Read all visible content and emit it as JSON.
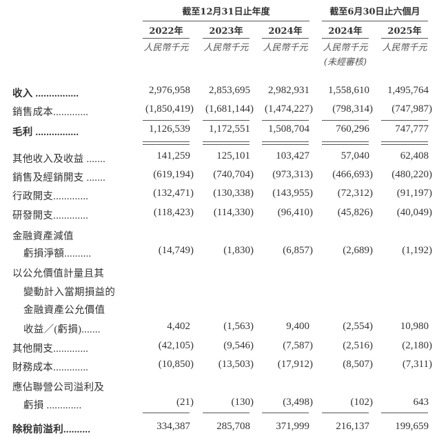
{
  "header": {
    "group_annual": "截至12月31日止年度",
    "group_interim": "截至6月30日止六個月",
    "years": [
      "2022年",
      "2023年",
      "2024年",
      "2024年",
      "2025年"
    ],
    "units": [
      "人民幣千元",
      "人民幣千元",
      "人民幣千元",
      "人民幣千元",
      "人民幣千元"
    ],
    "unaudited_note": "(未經審核)"
  },
  "rows": [
    {
      "label": "收入 ................",
      "values": [
        "2,976,958",
        "2,853,695",
        "2,982,931",
        "1,558,610",
        "1,495,764"
      ],
      "bold": true
    },
    {
      "label": "銷售成本.............",
      "values": [
        "(1,850,419)",
        "(1,681,144)",
        "(1,474,227)",
        "(798,314)",
        "(747,987)"
      ]
    },
    {
      "label": "毛利 ................",
      "values": [
        "1,126,539",
        "1,172,551",
        "1,508,704",
        "760,296",
        "747,777"
      ],
      "bold": true
    },
    {
      "label": "其他收入及收益 .......",
      "values": [
        "141,259",
        "125,101",
        "103,427",
        "57,040",
        "62,408"
      ]
    },
    {
      "label": "銷售及經銷開支 .......",
      "values": [
        "(619,194)",
        "(740,704)",
        "(973,313)",
        "(466,693)",
        "(480,220)"
      ]
    },
    {
      "label": "行政開支.............",
      "values": [
        "(132,471)",
        "(130,338)",
        "(143,955)",
        "(72,312)",
        "(91,197)"
      ]
    },
    {
      "label": "研發開支.............",
      "values": [
        "(118,423)",
        "(114,330)",
        "(96,410)",
        "(45,826)",
        "(40,049)"
      ]
    },
    {
      "label": "金融資產減值",
      "values": []
    },
    {
      "label": "虧損淨額..........",
      "values": [
        "(14,749)",
        "(1,830)",
        "(6,857)",
        "(2,689)",
        "(1,192)"
      ],
      "indent": true
    },
    {
      "label": "以公允價值計量且其",
      "values": []
    },
    {
      "label": "變動計入當期損益的",
      "values": [],
      "indent": true
    },
    {
      "label": "金融資產公允價值",
      "values": [],
      "indent": true
    },
    {
      "label": "收益／(虧損).......",
      "values": [
        "4,402",
        "(1,563)",
        "9,400",
        "(2,554)",
        "10,980"
      ],
      "indent": true
    },
    {
      "label": "其他開支.............",
      "values": [
        "(42,105)",
        "(9,546)",
        "(7,587)",
        "(2,516)",
        "(2,180)"
      ]
    },
    {
      "label": "財務成本.............",
      "values": [
        "(10,850)",
        "(13,503)",
        "(17,912)",
        "(8,507)",
        "(7,311)"
      ]
    },
    {
      "label": "應佔聯營公司溢利及",
      "values": []
    },
    {
      "label": "虧損 .............",
      "values": [
        "(21)",
        "(130)",
        "(3,498)",
        "(102)",
        "643"
      ],
      "indent": true
    },
    {
      "label": "除稅前溢利..........",
      "values": [
        "334,387",
        "285,708",
        "371,999",
        "216,137",
        "199,659"
      ],
      "bold": true
    }
  ]
}
